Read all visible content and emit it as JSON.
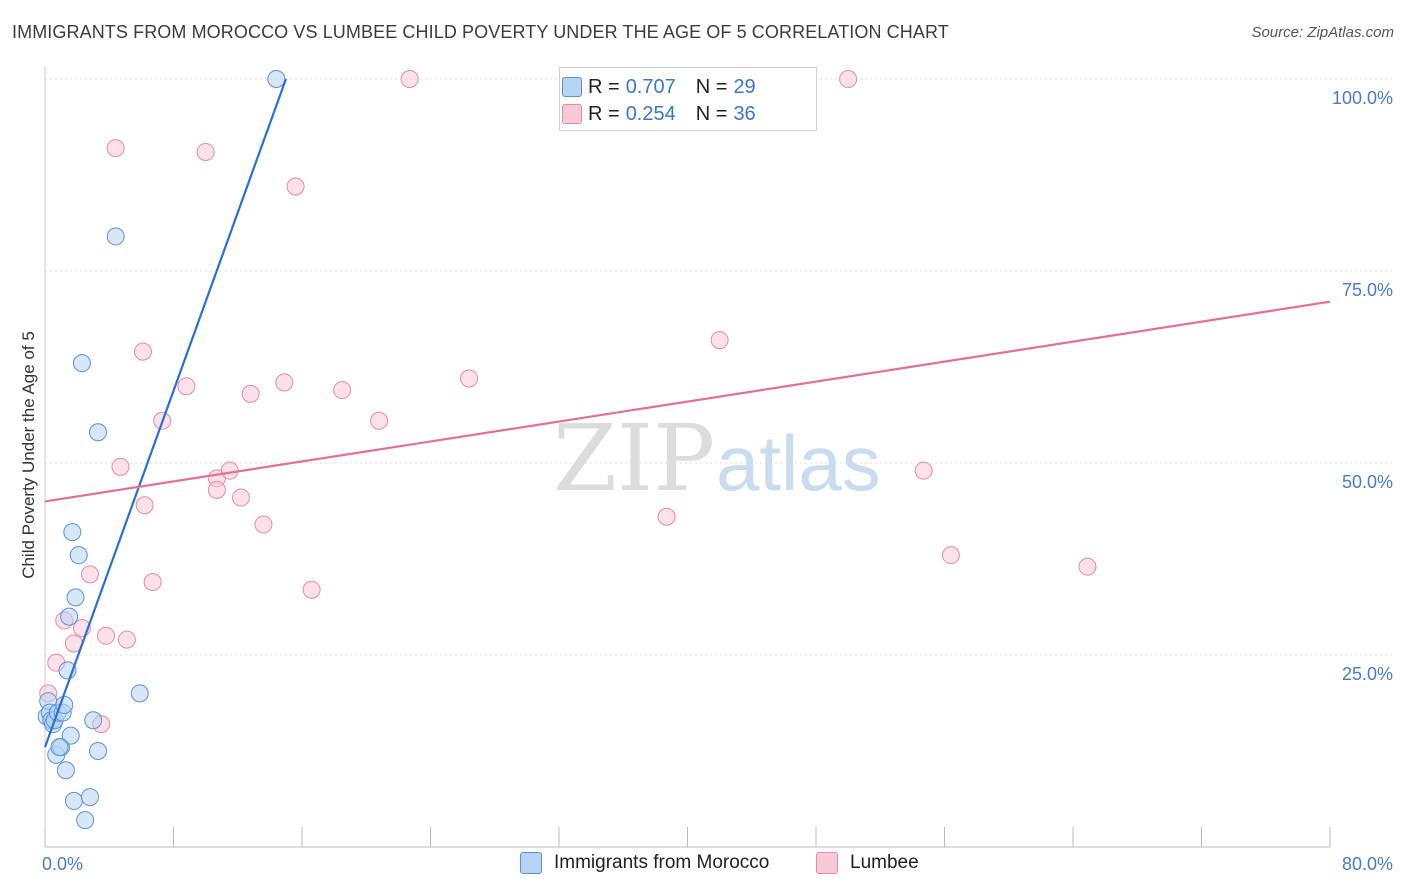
{
  "title": "IMMIGRANTS FROM MOROCCO VS LUMBEE CHILD POVERTY UNDER THE AGE OF 5 CORRELATION CHART",
  "source": "Source: ZipAtlas.com",
  "watermark": {
    "zip": "ZIP",
    "atlas": "atlas"
  },
  "legend": {
    "rows": [
      {
        "r_label": "R = ",
        "r_value": "0.707",
        "n_label": "N = ",
        "n_value": "29"
      },
      {
        "r_label": "R = ",
        "r_value": "0.254",
        "n_label": "N = ",
        "n_value": "36"
      }
    ]
  },
  "colors": {
    "morocco_fill": "#b7d3f3",
    "morocco_stroke": "#5b92d6",
    "morocco_line": "#2c6fd0",
    "lumbee_fill": "#f9c9d8",
    "lumbee_stroke": "#e48aa8",
    "lumbee_line": "#e0709a",
    "tick_text": "#4a7bc8",
    "grid": "#dddddd"
  },
  "chart_data": {
    "type": "scatter",
    "title": "IMMIGRANTS FROM MOROCCO VS LUMBEE CHILD POVERTY UNDER THE AGE OF 5 CORRELATION CHART",
    "xlabel": "",
    "ylabel": "Child Poverty Under the Age of 5",
    "xlim": [
      0,
      80
    ],
    "ylim": [
      0,
      100
    ],
    "x_tick_labels": [
      "0.0%",
      "80.0%"
    ],
    "y_tick_labels": [
      "25.0%",
      "50.0%",
      "75.0%",
      "100.0%"
    ],
    "y_ticks": [
      25,
      50,
      75,
      100
    ],
    "grid": true,
    "legend_position": "bottom",
    "series": [
      {
        "name": "Immigrants from Morocco",
        "points": [
          [
            0.1,
            17.0
          ],
          [
            0.2,
            19.0
          ],
          [
            0.3,
            17.5
          ],
          [
            0.4,
            16.5
          ],
          [
            0.5,
            16.0
          ],
          [
            0.6,
            16.5
          ],
          [
            0.7,
            12.0
          ],
          [
            0.8,
            17.5
          ],
          [
            1.0,
            13.0
          ],
          [
            1.1,
            17.5
          ],
          [
            1.2,
            18.5
          ],
          [
            1.3,
            10.0
          ],
          [
            1.4,
            23.0
          ],
          [
            1.5,
            30.0
          ],
          [
            1.6,
            14.5
          ],
          [
            1.7,
            41.0
          ],
          [
            1.8,
            6.0
          ],
          [
            1.9,
            32.5
          ],
          [
            2.1,
            38.0
          ],
          [
            2.5,
            3.5
          ],
          [
            2.8,
            6.5
          ],
          [
            3.0,
            16.5
          ],
          [
            3.3,
            12.5
          ],
          [
            3.3,
            54.0
          ],
          [
            2.3,
            63.0
          ],
          [
            4.4,
            79.5
          ],
          [
            5.9,
            20.0
          ],
          [
            14.4,
            100.0
          ],
          [
            0.9,
            13.0
          ]
        ],
        "trendline": {
          "x": [
            0.0,
            15.0
          ],
          "y": [
            13.0,
            100.0
          ]
        }
      },
      {
        "name": "Lumbee",
        "points": [
          [
            0.2,
            20.0
          ],
          [
            0.7,
            24.0
          ],
          [
            1.2,
            29.5
          ],
          [
            1.8,
            26.5
          ],
          [
            2.3,
            28.5
          ],
          [
            2.8,
            35.5
          ],
          [
            3.5,
            16.0
          ],
          [
            3.8,
            27.5
          ],
          [
            4.4,
            91.0
          ],
          [
            4.7,
            49.5
          ],
          [
            5.1,
            27.0
          ],
          [
            6.1,
            64.5
          ],
          [
            6.2,
            44.5
          ],
          [
            6.7,
            34.5
          ],
          [
            7.3,
            55.5
          ],
          [
            8.8,
            60.0
          ],
          [
            10.0,
            90.5
          ],
          [
            10.7,
            48.0
          ],
          [
            10.7,
            46.5
          ],
          [
            11.5,
            49.0
          ],
          [
            12.2,
            45.5
          ],
          [
            12.8,
            59.0
          ],
          [
            13.6,
            42.0
          ],
          [
            14.9,
            60.5
          ],
          [
            15.6,
            86.0
          ],
          [
            16.6,
            33.5
          ],
          [
            18.5,
            59.5
          ],
          [
            20.8,
            55.5
          ],
          [
            22.7,
            100.0
          ],
          [
            26.4,
            61.0
          ],
          [
            38.7,
            43.0
          ],
          [
            42.0,
            66.0
          ],
          [
            50.0,
            100.0
          ],
          [
            54.7,
            49.0
          ],
          [
            56.4,
            38.0
          ],
          [
            64.9,
            36.5
          ]
        ],
        "trendline": {
          "x": [
            0.0,
            80.0
          ],
          "y": [
            45.0,
            71.0
          ]
        }
      }
    ]
  }
}
